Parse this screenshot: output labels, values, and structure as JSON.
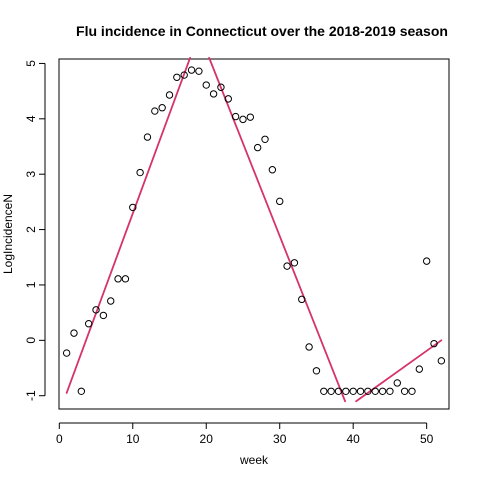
{
  "chart_data": {
    "type": "scatter",
    "title": "Flu incidence in Connecticut over the 2018-2019 season",
    "xlabel": "week",
    "ylabel": "LogIncidenceN",
    "xlim": [
      -0.04,
      53.04
    ],
    "ylim": [
      -1.24,
      5.08
    ],
    "x_ticks": [
      0,
      10,
      20,
      30,
      40,
      50
    ],
    "y_ticks": [
      -1,
      0,
      1,
      2,
      3,
      4,
      5
    ],
    "x_tick_labels": [
      "0",
      "10",
      "20",
      "30",
      "40",
      "50"
    ],
    "y_tick_labels": [
      "-1",
      "0",
      "1",
      "2",
      "3",
      "4",
      "5"
    ],
    "grid": false,
    "series": [
      {
        "type": "points",
        "marker": "open-circle",
        "color": "#000000",
        "points": [
          [
            1,
            -0.23
          ],
          [
            2,
            0.13
          ],
          [
            3,
            -0.92
          ],
          [
            4,
            0.3
          ],
          [
            5,
            0.55
          ],
          [
            6,
            0.45
          ],
          [
            7,
            0.71
          ],
          [
            8,
            1.11
          ],
          [
            9,
            1.11
          ],
          [
            10,
            2.4
          ],
          [
            11,
            3.03
          ],
          [
            12,
            3.67
          ],
          [
            13,
            4.14
          ],
          [
            14,
            4.2
          ],
          [
            15,
            4.43
          ],
          [
            16,
            4.75
          ],
          [
            17,
            4.79
          ],
          [
            18,
            4.88
          ],
          [
            19,
            4.86
          ],
          [
            20,
            4.61
          ],
          [
            21,
            4.45
          ],
          [
            22,
            4.57
          ],
          [
            23,
            4.36
          ],
          [
            24,
            4.04
          ],
          [
            25,
            3.99
          ],
          [
            26,
            4.03
          ],
          [
            27,
            3.48
          ],
          [
            28,
            3.63
          ],
          [
            29,
            3.08
          ],
          [
            30,
            2.51
          ],
          [
            31,
            1.34
          ],
          [
            32,
            1.4
          ],
          [
            33,
            0.74
          ],
          [
            34,
            -0.12
          ],
          [
            35,
            -0.55
          ],
          [
            36,
            -0.92
          ],
          [
            37,
            -0.92
          ],
          [
            38,
            -0.92
          ],
          [
            39,
            -0.92
          ],
          [
            40,
            -0.92
          ],
          [
            41,
            -0.92
          ],
          [
            42,
            -0.92
          ],
          [
            43,
            -0.92
          ],
          [
            44,
            -0.92
          ],
          [
            45,
            -0.92
          ],
          [
            46,
            -0.77
          ],
          [
            47,
            -0.92
          ],
          [
            48,
            -0.92
          ],
          [
            49,
            -0.52
          ],
          [
            50,
            1.43
          ],
          [
            51,
            -0.06
          ],
          [
            52,
            -0.37
          ]
        ]
      },
      {
        "type": "line",
        "color": "#d6336c",
        "segments": [
          [
            [
              1,
              -0.95
            ],
            [
              17.8,
              5.1
            ]
          ],
          [
            [
              20.4,
              5.1
            ],
            [
              38.9,
              -1.1
            ]
          ],
          [
            [
              40.4,
              -1.1
            ],
            [
              52,
              0.0
            ]
          ]
        ]
      }
    ]
  }
}
